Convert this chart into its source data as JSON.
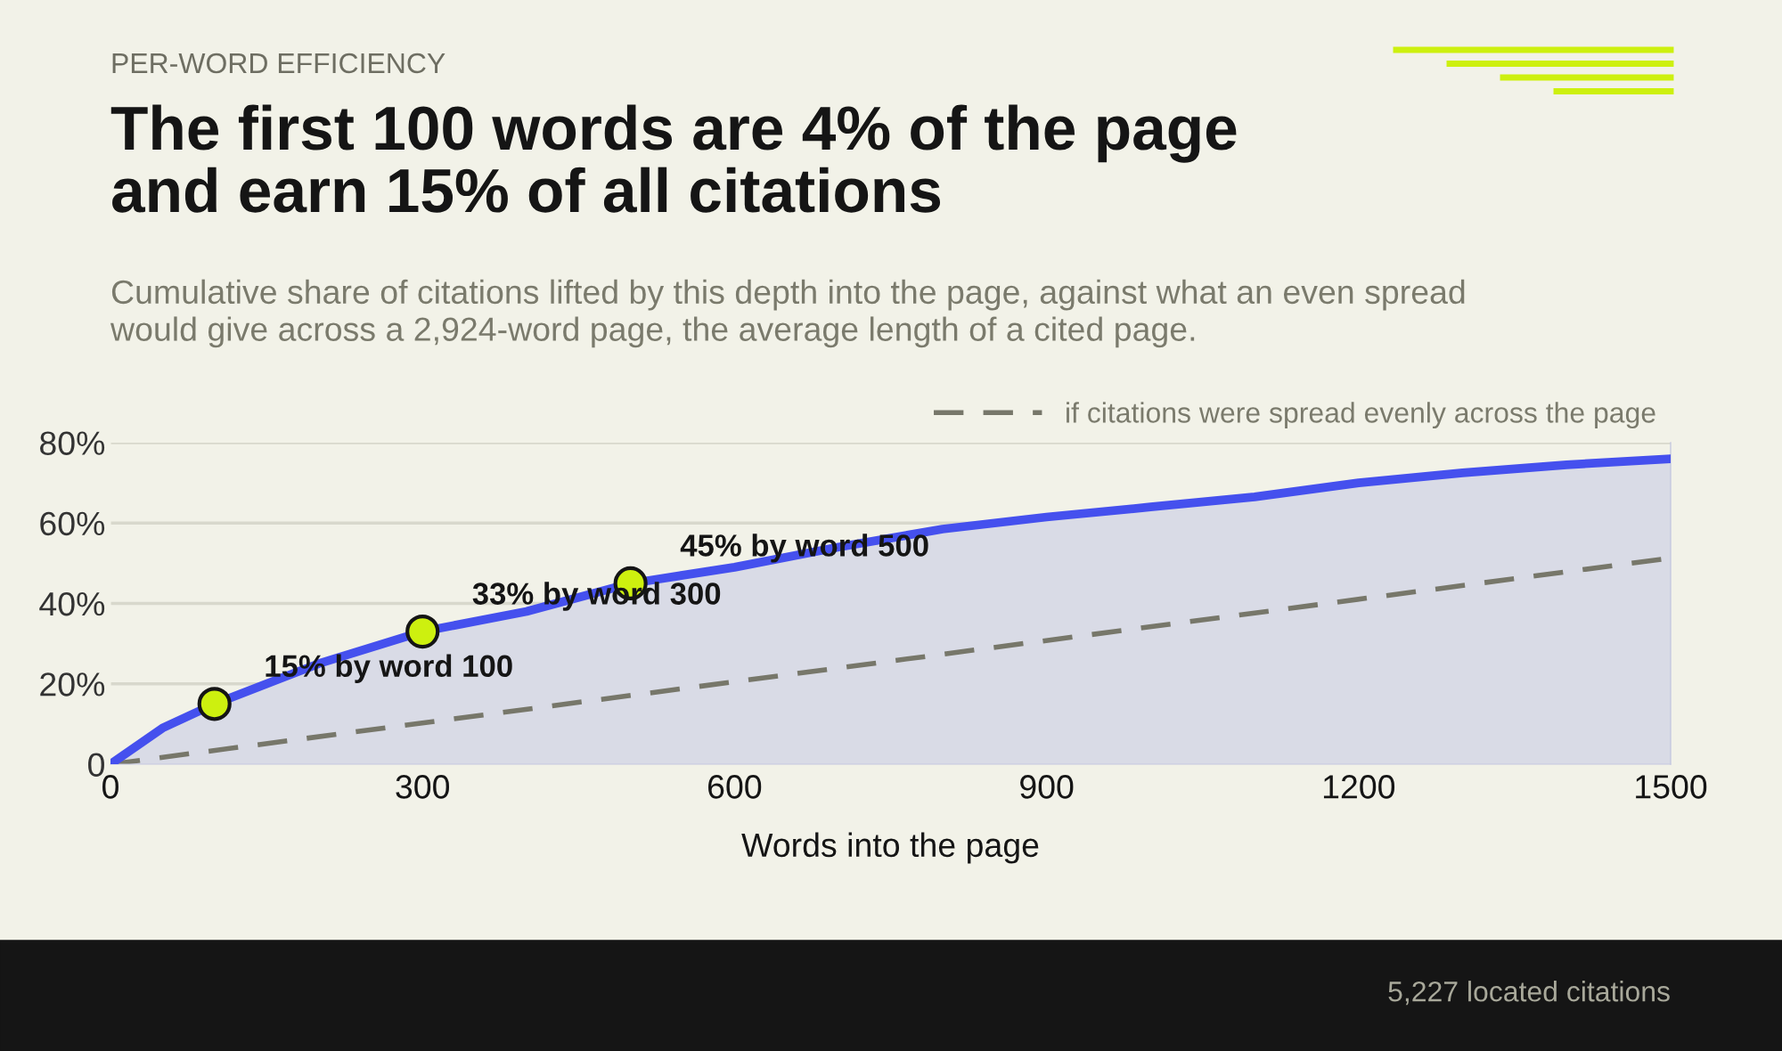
{
  "chart_data": {
    "type": "area",
    "title": "The first 100 words are 4% of the page\nand earn 15% of all citations",
    "subtitle": "Cumulative share of citations lifted by this depth into the page, against what an even spread\nwould give across a 2,924-word page, the average length of a cited page.",
    "xlabel": "Words into the page",
    "series": [
      {
        "color": "#4550ee",
        "x": [
          0,
          50,
          100,
          200,
          300,
          400,
          500,
          600,
          700,
          800,
          900,
          1000,
          1100,
          1200,
          1300,
          1400,
          1500
        ],
        "values": [
          0,
          9,
          15,
          25,
          33,
          38,
          45,
          49,
          54,
          58.5,
          61.5,
          64,
          66.5,
          70,
          72.5,
          74.5,
          76
        ]
      },
      {
        "type": "line",
        "name": "if citations were spread evenly across the page",
        "color": "#77776a",
        "line_style": "dashed",
        "x": [
          0,
          1500
        ],
        "values": [
          0,
          51.3
        ]
      },
      {
        "type": "scatter",
        "color": "#cdf00f",
        "marker": "circle",
        "x": [
          100,
          300,
          500
        ],
        "values": [
          15,
          33,
          45
        ]
      }
    ],
    "annotations": [
      "PER-WORD EFFICIENCY",
      {
        "text": "15% by word 100",
        "x": 100,
        "y": 15
      },
      {
        "text": "33% by word 300",
        "x": 300,
        "y": 33
      },
      {
        "text": "45% by word 500",
        "x": 500,
        "y": 45
      },
      "5,227 located citations"
    ],
    "xlim": [
      0,
      1500
    ],
    "xticks": [
      0,
      300,
      600,
      900,
      1200,
      1500
    ],
    "ylim": [
      0,
      80
    ],
    "yticks": [
      0,
      {
        "value": 20,
        "label": "20%"
      },
      {
        "value": 40,
        "label": "40%"
      },
      {
        "value": 60,
        "label": "60%"
      },
      {
        "value": 80,
        "label": "80%"
      }
    ],
    "grid": "y",
    "legend": "top right"
  }
}
